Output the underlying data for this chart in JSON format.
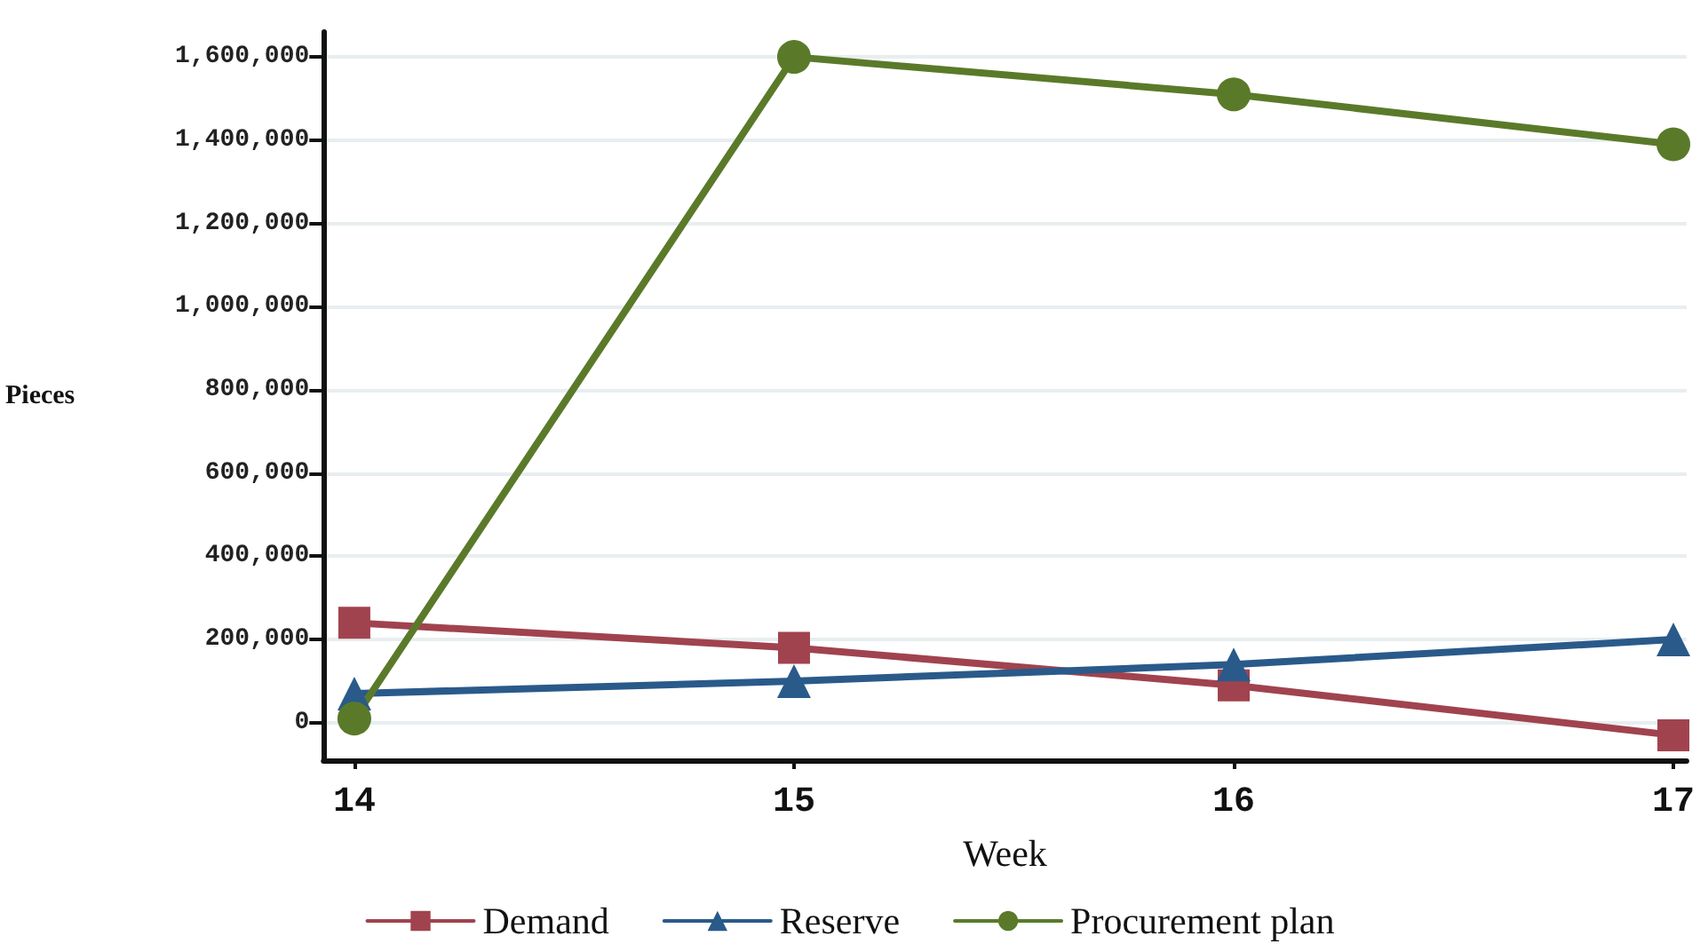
{
  "chart_data": {
    "type": "line",
    "xlabel": "Week",
    "ylabel": "Pieces",
    "x": [
      14,
      15,
      16,
      17
    ],
    "xlim": [
      13.93,
      17.03
    ],
    "xticks": [
      14,
      15,
      16,
      17
    ],
    "ylim": [
      -90000,
      1660000
    ],
    "yticks": [
      0,
      {
        "value": 200000,
        "label": "200,000"
      },
      {
        "value": 400000,
        "label": "400,000"
      },
      {
        "value": 600000,
        "label": "600,000"
      },
      {
        "value": 800000,
        "label": "800,000"
      },
      {
        "value": 1000000,
        "label": "1,000,000"
      },
      {
        "value": 1200000,
        "label": "1,200,000"
      },
      {
        "value": 1400000,
        "label": "1,400,000"
      },
      {
        "value": 1600000,
        "label": "1,600,000"
      }
    ],
    "grid": "y",
    "legend": "bottom",
    "line_style": "solid",
    "series": [
      {
        "name": "Demand",
        "color": "#a0434f",
        "marker": "square",
        "values": [
          240000,
          180000,
          90000,
          -30000
        ]
      },
      {
        "name": "Reserve",
        "color": "#2a5a8a",
        "marker": "triangle",
        "values": [
          70000,
          100000,
          140000,
          200000
        ]
      },
      {
        "name": "Procurement plan",
        "color": "#5a7a2a",
        "marker": "circle",
        "values": [
          10000,
          1600000,
          1510000,
          1390000
        ]
      }
    ]
  }
}
